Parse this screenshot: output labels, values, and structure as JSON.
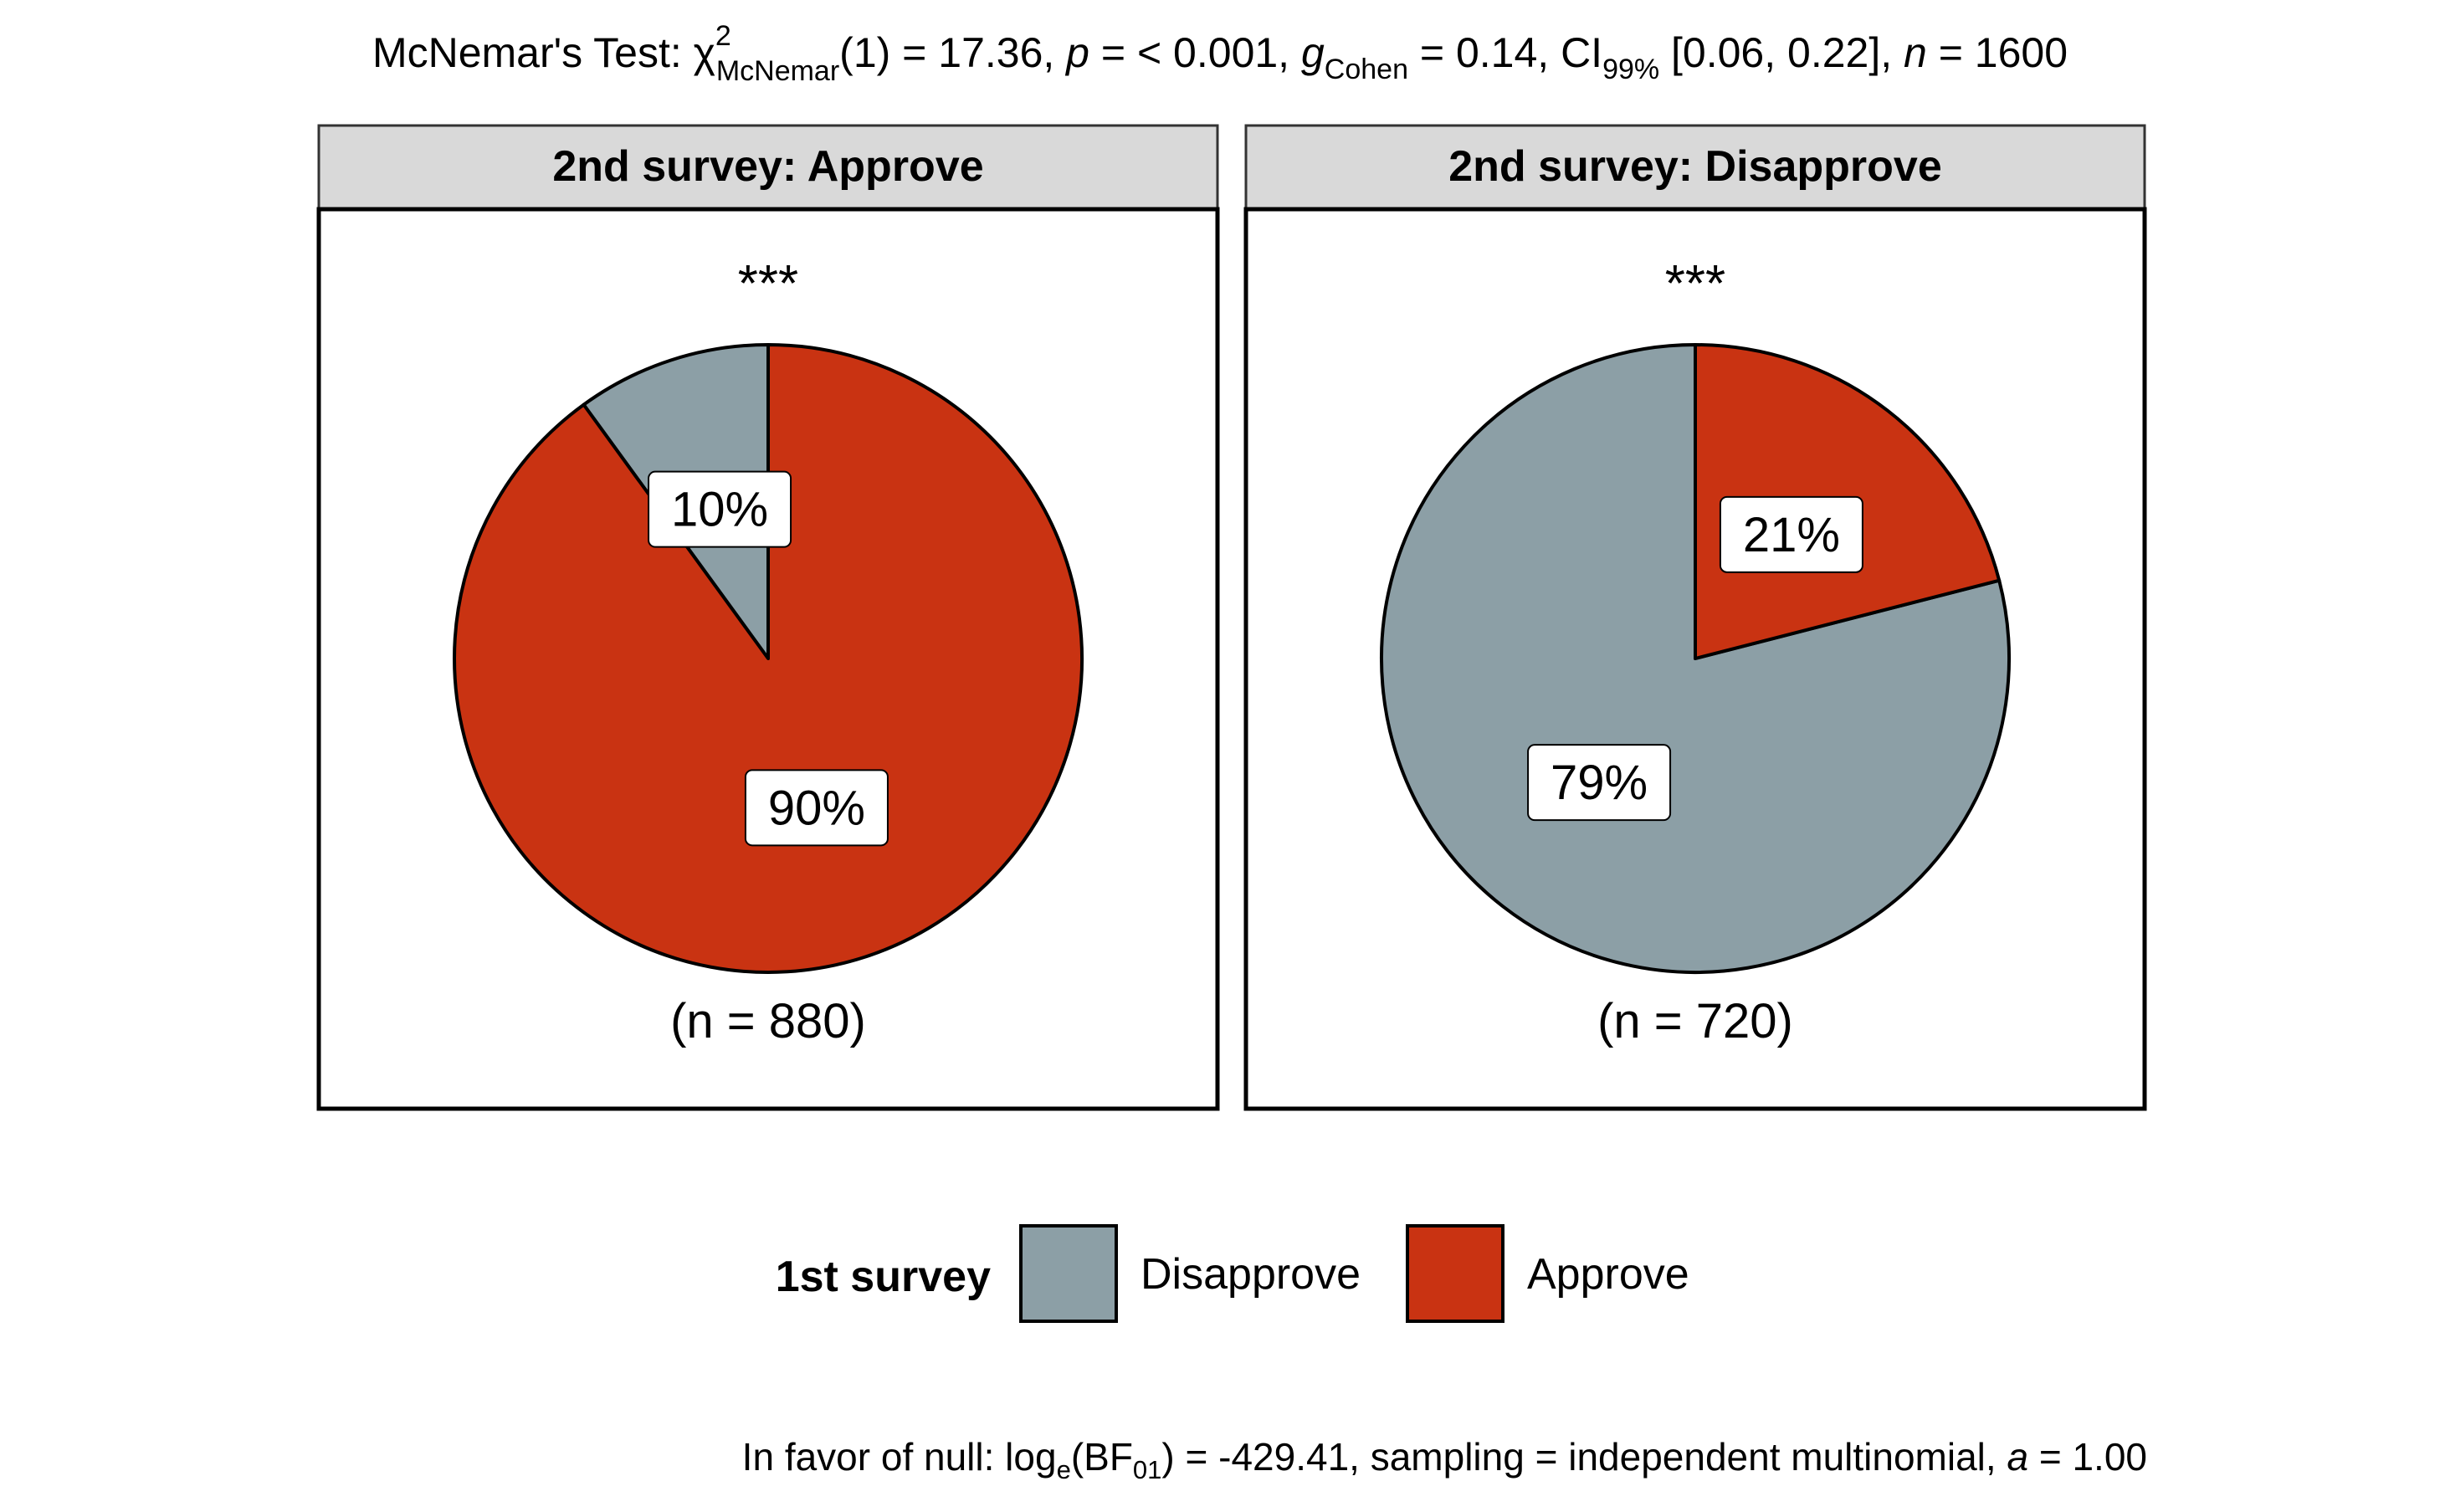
{
  "subtitle": {
    "prefix": "McNemar's Test: ",
    "chi_symbol": "χ",
    "chi_sup": "2",
    "chi_sub": "McNemar",
    "stat_text": "(1) = 17.36, ",
    "p_symbol": "p",
    "p_text": " = < 0.001, ",
    "g_symbol": "g",
    "g_sub": "Cohen",
    "g_text": " = 0.14, CI",
    "ci_sub": "99%",
    "ci_text": " [0.06, 0.22], ",
    "n_symbol": "n",
    "n_text": " = 1600"
  },
  "caption": {
    "prefix": "In favor of null: log",
    "log_sub": "e",
    "bf_text": "(BF",
    "bf_sub": "01",
    "rest": ") = -429.41, sampling = independent multinomial, ",
    "a_symbol": "a",
    "a_text": " = 1.00"
  },
  "legend": {
    "title": "1st survey",
    "items": [
      {
        "label": "Disapprove",
        "color": "#8C9FA6"
      },
      {
        "label": "Approve",
        "color": "#C93312"
      }
    ]
  },
  "chart_data": {
    "type": "pie",
    "panels": [
      {
        "strip": "2nd survey: Approve",
        "significance": "***",
        "n_label": "(n = 880)",
        "slices": [
          {
            "category": "Disapprove",
            "value": 10,
            "label": "10%",
            "color": "#8C9FA6"
          },
          {
            "category": "Approve",
            "value": 90,
            "label": "90%",
            "color": "#C93312"
          }
        ]
      },
      {
        "strip": "2nd survey: Disapprove",
        "significance": "***",
        "n_label": "(n = 720)",
        "slices": [
          {
            "category": "Disapprove",
            "value": 79,
            "label": "79%",
            "color": "#8C9FA6"
          },
          {
            "category": "Approve",
            "value": 21,
            "label": "21%",
            "color": "#C93312"
          }
        ]
      }
    ]
  }
}
